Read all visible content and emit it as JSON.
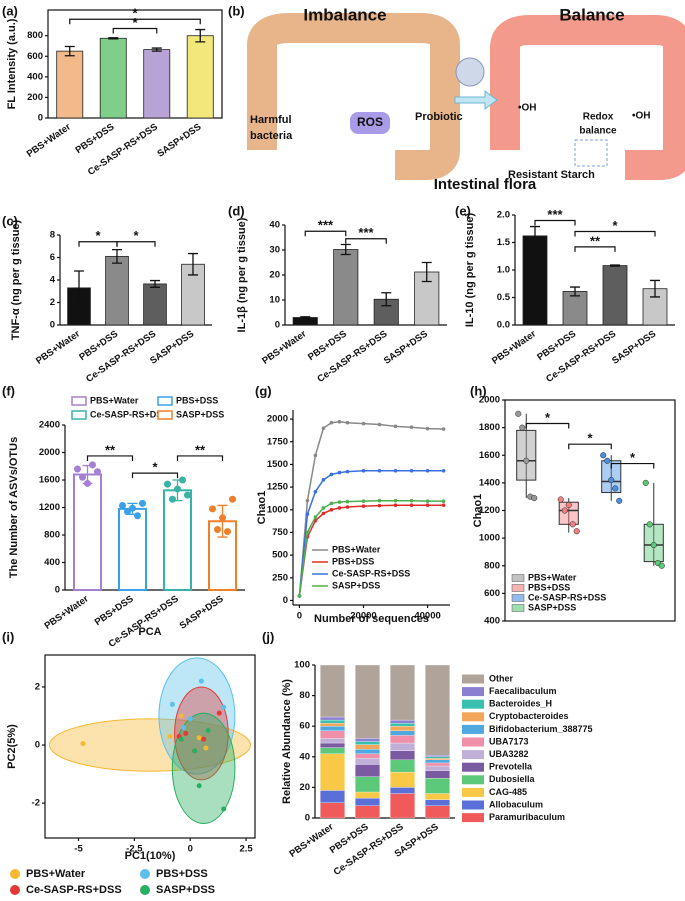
{
  "diagram": {
    "panel": "(b)",
    "imbalance": "Imbalance",
    "balance": "Balance",
    "harmful": [
      "Harmful",
      "bacteria"
    ],
    "ros": "ROS",
    "probiotic": "Probiotic",
    "oh": [
      "•OH",
      "•OH"
    ],
    "redox": [
      "Redox",
      "balance"
    ],
    "starch": "Resistant Starch",
    "flora": "Intestinal flora"
  },
  "chart_data": [
    {
      "type": "bar",
      "panel": "(a)",
      "ylabel": "FL Intensity (a.u.)",
      "categories": [
        "PBS+Water",
        "PBS+DSS",
        "Ce-SASP-RS+DSS",
        "SASP+DSS"
      ],
      "values": [
        650,
        775,
        665,
        800
      ],
      "errors": [
        45,
        5,
        15,
        60
      ],
      "colors": [
        "#f2b98a",
        "#7fcf8a",
        "#b7a3d6",
        "#f2e77a"
      ],
      "ylim": [
        0,
        1050
      ],
      "yticks": [
        0,
        200,
        400,
        600,
        800
      ],
      "annotations": [
        "*",
        "*"
      ]
    },
    {
      "type": "bar",
      "panel": "(c)",
      "ylabel": "TNF-α (ng per g tissue)",
      "categories": [
        "PBS+Water",
        "PBS+DSS",
        "Ce-SASP-RS+DSS",
        "SASP+DSS"
      ],
      "values": [
        3.3,
        6.1,
        3.65,
        5.4
      ],
      "errors": [
        1.5,
        0.6,
        0.3,
        0.95
      ],
      "colors": [
        "#111111",
        "#8a8a8a",
        "#5e5e5e",
        "#c8c8c8"
      ],
      "ylim": [
        0,
        8
      ],
      "yticks": [
        0,
        2,
        4,
        6,
        8
      ],
      "annotations": [
        "*",
        "*"
      ]
    },
    {
      "type": "bar",
      "panel": "(d)",
      "ylabel": "IL-1β (ng per g tissue)",
      "categories": [
        "PBS+Water",
        "PBS+DSS",
        "Ce-SASP-RS+DSS",
        "SASP+DSS"
      ],
      "values": [
        3.0,
        30.2,
        10.3,
        21.2
      ],
      "errors": [
        0.3,
        2.0,
        2.6,
        3.8
      ],
      "colors": [
        "#111111",
        "#8a8a8a",
        "#5e5e5e",
        "#c8c8c8"
      ],
      "ylim": [
        0,
        40
      ],
      "yticks": [
        0,
        10,
        20,
        30,
        40
      ],
      "annotations": [
        "***",
        "***"
      ]
    },
    {
      "type": "bar",
      "panel": "(e)",
      "ylabel": "IL-10 (ng per g tissue)",
      "categories": [
        "PBS+Water",
        "PBS+DSS",
        "Ce-SASP-RS+DSS",
        "SASP+DSS"
      ],
      "values": [
        1.62,
        0.61,
        1.08,
        0.66
      ],
      "errors": [
        0.17,
        0.08,
        0.01,
        0.15
      ],
      "colors": [
        "#111111",
        "#8a8a8a",
        "#5e5e5e",
        "#c8c8c8"
      ],
      "ylim": [
        0,
        2
      ],
      "yticks": [
        {
          "value": 0,
          "label": "0.0"
        },
        {
          "value": 0.5,
          "label": "0.5"
        },
        {
          "value": 1,
          "label": "1.0"
        },
        {
          "value": 1.5,
          "label": "1.5"
        },
        {
          "value": 2,
          "label": "2.0"
        }
      ],
      "annotations": [
        "***",
        "**",
        "*"
      ]
    },
    {
      "type": "bar",
      "panel": "(f)",
      "ylabel": "The Number of ASVs/OTUs",
      "categories": [
        "PBS+Water",
        "PBS+DSS",
        "Ce-SASP-RS+DSS",
        "SASP+DSS"
      ],
      "values": [
        1680,
        1180,
        1450,
        1000
      ],
      "errors": [
        130,
        80,
        150,
        230
      ],
      "colors": [
        "#a57fd1",
        "#3aa0e8",
        "#38b2a5",
        "#f07f2a"
      ],
      "filled": false,
      "points": [
        [
          1760,
          1640,
          1550,
          1820,
          1720
        ],
        [
          1230,
          1140,
          1190,
          1080,
          1260
        ],
        [
          1540,
          1320,
          1470,
          1600,
          1380
        ],
        [
          1180,
          880,
          1050,
          850,
          1320
        ]
      ],
      "ylim": [
        0,
        2400
      ],
      "yticks": [
        0,
        400,
        800,
        1200,
        1600,
        2000,
        2400
      ],
      "annotations": [
        "**",
        "*",
        "**"
      ],
      "legend": true
    },
    {
      "type": "line",
      "panel": "(g)",
      "xlabel": "Number of sequences",
      "ylabel": "Chao1",
      "x": [
        0,
        2500,
        5000,
        7500,
        10000,
        12500,
        15000,
        20000,
        25000,
        30000,
        35000,
        40000,
        45000
      ],
      "series": [
        {
          "name": "PBS+Water",
          "color": "#888888",
          "values": [
            50,
            1100,
            1600,
            1900,
            1960,
            1970,
            1960,
            1950,
            1940,
            1920,
            1910,
            1895,
            1890
          ]
        },
        {
          "name": "PBS+DSS",
          "color": "#e22a2a",
          "values": [
            50,
            700,
            880,
            960,
            1000,
            1020,
            1030,
            1040,
            1045,
            1050,
            1050,
            1050,
            1050
          ]
        },
        {
          "name": "Ce-SASP-RS+DSS",
          "color": "#3a6fe0",
          "values": [
            50,
            950,
            1200,
            1330,
            1390,
            1410,
            1420,
            1430,
            1430,
            1430,
            1430,
            1430,
            1430
          ]
        },
        {
          "name": "SASP+DSS",
          "color": "#4caf50",
          "values": [
            50,
            750,
            920,
            1020,
            1070,
            1085,
            1090,
            1095,
            1100,
            1100,
            1100,
            1095,
            1095
          ]
        }
      ],
      "xlim": [
        -2000,
        47000
      ],
      "ylim": [
        -50,
        2100
      ],
      "xticks": [
        0,
        20000,
        40000
      ],
      "yticks": [
        0,
        250,
        500,
        750,
        1000,
        1250,
        1500,
        1750,
        2000
      ]
    },
    {
      "type": "box",
      "panel": "(h)",
      "ylabel": "Chao1",
      "categories": [
        "PBS+Water",
        "PBS+DSS",
        "Ce-SASP-RS+DSS",
        "SASP+DSS"
      ],
      "colors": [
        "#999999",
        "#f08080",
        "#4a90e2",
        "#5cc87a"
      ],
      "q1": [
        1420,
        1100,
        1330,
        830
      ],
      "median": [
        1560,
        1200,
        1410,
        950
      ],
      "q3": [
        1780,
        1260,
        1560,
        1100
      ],
      "min": [
        1290,
        1040,
        1270,
        800
      ],
      "max": [
        1900,
        1290,
        1600,
        1400
      ],
      "points": [
        [
          1900,
          1800,
          1560,
          1300,
          1290
        ],
        [
          1280,
          1200,
          1240,
          1100,
          1050
        ],
        [
          1600,
          1560,
          1420,
          1360,
          1270
        ],
        [
          1400,
          1100,
          950,
          820,
          800
        ]
      ],
      "ylim": [
        400,
        2000
      ],
      "yticks": [
        400,
        600,
        800,
        1000,
        1200,
        1400,
        1600,
        1800,
        2000
      ],
      "annotations": [
        "*",
        "*",
        "*"
      ]
    },
    {
      "type": "scatter",
      "panel": "(i)",
      "title": "PCA",
      "xlabel": "PC1(10%)",
      "ylabel": "PC2(5%)",
      "series": [
        {
          "name": "PBS+Water",
          "color": "#f7b731",
          "x": [
            -4.8,
            0.4,
            -0.4,
            0.7,
            -0.9
          ],
          "y": [
            0.05,
            0.25,
            1.0,
            -0.1,
            0.3
          ],
          "ellipse": {
            "cx": -1.8,
            "cy": 0,
            "rx": 4.5,
            "ry": 0.9
          }
        },
        {
          "name": "PBS+DSS",
          "color": "#5bc0eb",
          "x": [
            0.5,
            0.0,
            -0.8,
            -0.3,
            1.5
          ],
          "y": [
            2.2,
            0.9,
            1.4,
            0.6,
            1.3
          ],
          "ellipse": {
            "cx": 0.3,
            "cy": 1.0,
            "rx": 1.7,
            "ry": 2.0
          }
        },
        {
          "name": "Ce-SASP-RS+DSS",
          "color": "#e53935",
          "x": [
            -0.5,
            0.2,
            1.3,
            -0.2,
            0.6
          ],
          "y": [
            0.3,
            -0.2,
            1.1,
            0.4,
            0.2
          ],
          "ellipse": {
            "cx": 0.5,
            "cy": 0.4,
            "rx": 1.2,
            "ry": 1.6
          }
        },
        {
          "name": "SASP+DSS",
          "color": "#27ae60",
          "x": [
            1.5,
            0.4,
            -0.4,
            0.8,
            0.2
          ],
          "y": [
            -2.2,
            -1.4,
            0.2,
            0.5,
            -0.2
          ],
          "ellipse": {
            "cx": 0.6,
            "cy": -0.8,
            "rx": 1.4,
            "ry": 1.9
          }
        }
      ],
      "xlim": [
        -6.5,
        2.9
      ],
      "ylim": [
        -3.2,
        3.1
      ],
      "xticks": [
        -5,
        -2.5,
        0,
        2.5
      ],
      "yticks": [
        -2,
        0,
        2
      ]
    },
    {
      "type": "stacked_bar",
      "panel": "(j)",
      "ylabel": "Relative Abundance (%)",
      "categories": [
        "PBS+Water",
        "PBS+DSS",
        "Ce-SASP-RS+DSS",
        "SASP+DSS"
      ],
      "series": [
        {
          "name": "Paramuribaculum",
          "color": "#f05a5a",
          "values": [
            10,
            8,
            16,
            8
          ]
        },
        {
          "name": "Allobaculum",
          "color": "#5a6fd8",
          "values": [
            8,
            5,
            4,
            4
          ]
        },
        {
          "name": "CAG-485",
          "color": "#f9c846",
          "values": [
            24,
            4,
            10,
            4
          ]
        },
        {
          "name": "Dubosiella",
          "color": "#5cc87a",
          "values": [
            4,
            10,
            8,
            10
          ]
        },
        {
          "name": "Prevotella",
          "color": "#7a5aa0",
          "values": [
            3,
            8,
            6,
            5
          ]
        },
        {
          "name": "UBA3282",
          "color": "#c0b0d8",
          "values": [
            3,
            4,
            5,
            3
          ]
        },
        {
          "name": "UBA7173",
          "color": "#ef8fa8",
          "values": [
            5,
            3,
            5,
            2
          ]
        },
        {
          "name": "Bifidobacterium_388775",
          "color": "#4fa8e0",
          "values": [
            3,
            3,
            3,
            2
          ]
        },
        {
          "name": "Cryptobacteroides",
          "color": "#f2a65a",
          "values": [
            2,
            3,
            3,
            1
          ]
        },
        {
          "name": "Bacteroides_H",
          "color": "#39c0b0",
          "values": [
            2,
            2,
            2,
            1
          ]
        },
        {
          "name": "Faecalibaculum",
          "color": "#8a7fd0",
          "values": [
            2,
            2,
            2,
            1
          ]
        },
        {
          "name": "Other",
          "color": "#b0a49a",
          "values": [
            34,
            48,
            36,
            59
          ]
        }
      ],
      "ylim": [
        0,
        100
      ],
      "yticks": [
        0,
        20,
        40,
        60,
        80,
        100
      ]
    }
  ]
}
